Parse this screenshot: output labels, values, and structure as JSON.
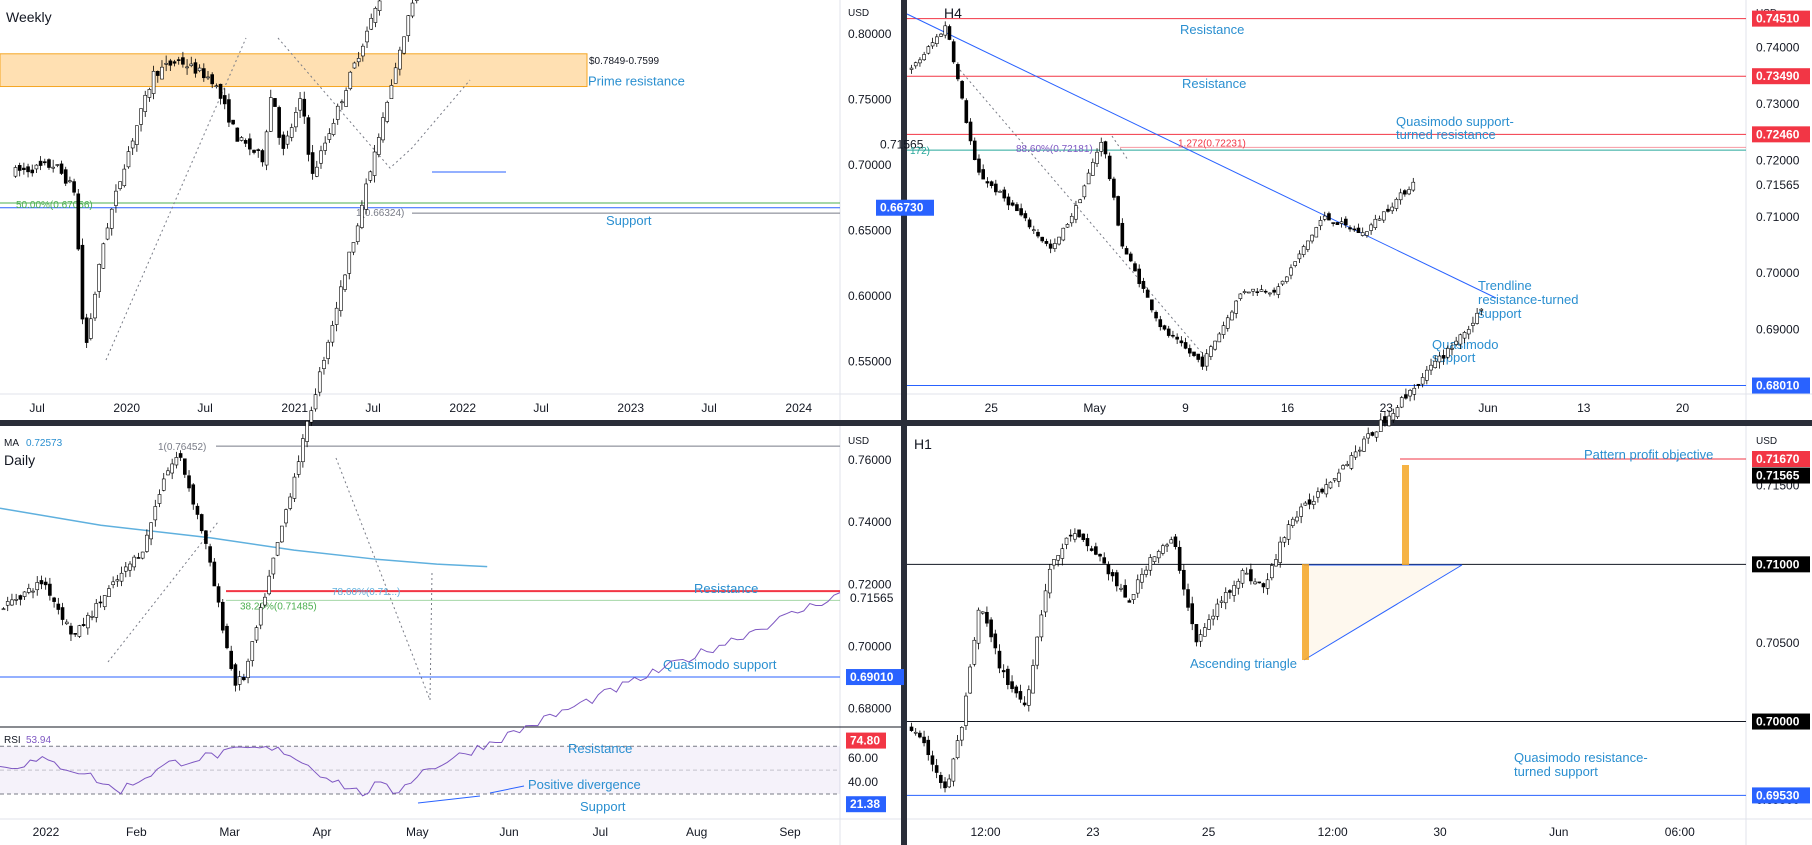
{
  "chart_data": [
    {
      "type": "candlestick",
      "timeframe": "Weekly",
      "currency": "USD",
      "price_ticks": [
        "0.80000",
        "0.75000",
        "0.70000",
        "0.65000",
        "0.60000",
        "0.55000"
      ],
      "time_ticks": [
        "Jul",
        "2020",
        "Jul",
        "2021",
        "Jul",
        "2022",
        "Jul",
        "2023",
        "Jul",
        "2024"
      ],
      "ylim": [
        0.525,
        0.826
      ],
      "price_badges": [
        {
          "text": "0.71565",
          "color": "plain"
        },
        {
          "text": "0.66730",
          "color": "#2962ff"
        }
      ],
      "zone": {
        "label": "$0.7849-0.7599",
        "top": 0.7849,
        "bottom": 0.7599
      },
      "lines": [
        {
          "value": 0.6673,
          "color": "#2962ff"
        },
        {
          "value": 0.6709,
          "color": "#4caf50"
        },
        {
          "value": 0.6632,
          "color": "#787b86"
        }
      ],
      "labels": {
        "prime": "Prime resistance",
        "support": "Support",
        "fib50": "50.00%(0.67056)",
        "fib1": "1(0.66324)"
      }
    },
    {
      "type": "candlestick",
      "timeframe": "H4",
      "currency": "USD",
      "price_ticks": [
        "0.74000",
        "0.73000",
        "0.72000",
        "0.71000",
        "0.70000",
        "0.69000"
      ],
      "time_ticks": [
        "25",
        "May",
        "9",
        "16",
        "23",
        "Jun",
        "13",
        "20"
      ],
      "ylim": [
        0.6786,
        0.7484
      ],
      "price_badges": [
        {
          "text": "0.74510",
          "color": "#f23645"
        },
        {
          "text": "0.73490",
          "color": "#f23645"
        },
        {
          "text": "0.72460",
          "color": "#f23645"
        },
        {
          "text": "0.71565",
          "color": "plain"
        },
        {
          "text": "0.68010",
          "color": "#2962ff"
        }
      ],
      "lines": [
        {
          "value": 0.7451,
          "color": "#f23645"
        },
        {
          "value": 0.7349,
          "color": "#f23645"
        },
        {
          "value": 0.7246,
          "color": "#f23645"
        },
        {
          "value": 0.7223,
          "color": "#f23645"
        },
        {
          "value": 0.7218,
          "color": "#26a69a"
        },
        {
          "value": 0.6801,
          "color": "#2962ff"
        }
      ],
      "labels": {
        "res1": "Resistance",
        "res2": "Resistance",
        "qm1": "Quasimodo support-",
        "qm2": "turned resistance",
        "tl1": "Trendline",
        "tl2": "resistance-turned",
        "tl3": "support",
        "qs1": "Quasimodo",
        "qs2": "support",
        "fib886": "88.60%(0.72181)",
        "fib1272": "1.272(0.72231)",
        "left_fib": "172)"
      }
    },
    {
      "type": "candlestick",
      "timeframe": "Daily",
      "currency": "USD",
      "ma_label": "MA",
      "ma_value": "0.72573",
      "price_ticks": [
        "0.76000",
        "0.74000",
        "0.72000",
        "0.70000",
        "0.68000"
      ],
      "time_ticks": [
        "2022",
        "Feb",
        "Mar",
        "Apr",
        "May",
        "Jun",
        "Jul",
        "Aug",
        "Sep"
      ],
      "ylim": [
        0.674,
        0.771
      ],
      "price_badges": [
        {
          "text": "0.71565",
          "color": "plain"
        },
        {
          "text": "0.69010",
          "color": "#2962ff"
        }
      ],
      "lines": [
        {
          "value": 0.7645,
          "color": "#787b86"
        },
        {
          "value": 0.7178,
          "color": "#f23645"
        },
        {
          "value": 0.7148,
          "color": "#4caf50"
        },
        {
          "value": 0.6901,
          "color": "#2962ff"
        }
      ],
      "labels": {
        "fib1": "1(0.76452)",
        "fib382": "38.20%(0.71485)",
        "fib786": "78.60%(0.71...)",
        "res": "Resistance",
        "qs": "Quasimodo support"
      },
      "rsi": {
        "label": "RSI",
        "value": "53.94",
        "ticks": [
          "60.00",
          "40.00"
        ],
        "ylim": [
          14,
          82
        ],
        "badges": [
          {
            "text": "74.80",
            "color": "#f23645"
          },
          {
            "text": "21.38",
            "color": "#2962ff"
          }
        ],
        "labels": {
          "res": "Resistance",
          "div": "Positive divergence",
          "sup": "Support"
        }
      }
    },
    {
      "type": "candlestick",
      "timeframe": "H1",
      "currency": "USD",
      "price_ticks": [
        "0.71500",
        "0.71000",
        "0.70500",
        "0.70000",
        "0.69500"
      ],
      "time_ticks": [
        "12:00",
        "23",
        "25",
        "12:00",
        "30",
        "Jun",
        "06:00"
      ],
      "ylim": [
        0.6938,
        0.7188
      ],
      "price_badges": [
        {
          "text": "0.71670",
          "color": "#f23645"
        },
        {
          "text": "0.71565",
          "color": "#000000"
        },
        {
          "text": "0.71000",
          "color": "#000000"
        },
        {
          "text": "0.70000",
          "color": "#000000"
        },
        {
          "text": "0.69530",
          "color": "#2962ff"
        }
      ],
      "lines": [
        {
          "value": 0.7167,
          "color": "#f23645"
        },
        {
          "value": 0.71,
          "color": "#131722"
        },
        {
          "value": 0.7,
          "color": "#131722"
        },
        {
          "value": 0.6953,
          "color": "#2962ff"
        }
      ],
      "labels": {
        "ppo": "Pattern profit objective",
        "tri": "Ascending triangle",
        "qm1": "Quasimodo resistance-",
        "qm2": "turned support"
      }
    }
  ]
}
